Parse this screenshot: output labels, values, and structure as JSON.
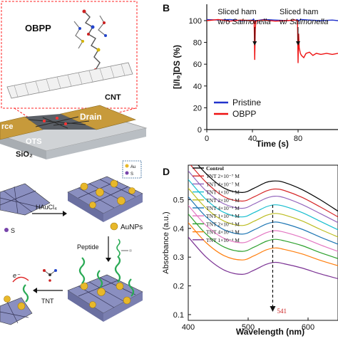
{
  "panels": {
    "b_letter": "B",
    "d_letter": "D"
  },
  "device": {
    "molecule_label": "OBPP",
    "cnt_label": "CNT",
    "source_label": "rce",
    "drain_label": "Drain",
    "ots_label": "OTS",
    "substrate_label": "SiO₂"
  },
  "synthesis": {
    "reagent_label": "HAuCl₄",
    "nanoparticle_label": "AuNPs",
    "peptide_label": "Peptide",
    "analyte_label": "TNT",
    "electron_label": "e⁻",
    "legend_au": "Au",
    "legend_s": "S",
    "left_s": "S"
  },
  "chart_data": [
    {
      "type": "line",
      "panel": "B",
      "xlabel": "Time (s)",
      "ylabel": "[I/I₀]DS (%)",
      "xticks": [
        "0",
        "40",
        "80"
      ],
      "yticks": [
        "0",
        "20",
        "40",
        "60",
        "80",
        "100"
      ],
      "xlim": [
        0,
        115
      ],
      "ylim": [
        0,
        115
      ],
      "legend": [
        "Pristine",
        "OBPP"
      ],
      "legend_position": "bottom-left",
      "annotations": [
        {
          "x": 42,
          "text": "Sliced ham w/o Salmonella"
        },
        {
          "x": 80,
          "text": "Sliced ham w/ Salmonella"
        }
      ],
      "series": [
        {
          "name": "Pristine",
          "color": "#2233cc",
          "x": [
            0,
            10,
            20,
            30,
            40,
            41,
            42,
            43,
            50,
            60,
            70,
            78,
            79,
            80,
            81,
            82,
            90,
            100,
            110,
            115
          ],
          "y": [
            101,
            100.5,
            101,
            100,
            100.5,
            101.5,
            99.5,
            100,
            101,
            100.5,
            100,
            100.5,
            101,
            100.5,
            100,
            101,
            100.5,
            100,
            100.5,
            100
          ]
        },
        {
          "name": "OBPP",
          "color": "#ee1111",
          "x": [
            0,
            10,
            20,
            30,
            40,
            41.5,
            42,
            42.5,
            43,
            44,
            50,
            60,
            70,
            78,
            79.5,
            80,
            80.5,
            81,
            82,
            83,
            85,
            87,
            90,
            93,
            96,
            100,
            105,
            110,
            115
          ],
          "y": [
            100,
            101,
            99.5,
            100.5,
            100,
            100,
            64,
            92,
            99,
            100,
            100.5,
            99.5,
            100,
            100.5,
            100,
            61,
            88,
            75,
            70,
            68,
            66,
            70,
            71,
            68,
            70,
            69,
            70,
            69,
            70
          ]
        }
      ]
    },
    {
      "type": "line",
      "panel": "D",
      "xlabel": "Wavelength (nm)",
      "ylabel": "Absorbance (a.u.)",
      "xticks": [
        "400",
        "500",
        "600"
      ],
      "yticks": [
        "0.1",
        "0.2",
        "0.3",
        "0.4",
        "0.5"
      ],
      "xlim": [
        400,
        650
      ],
      "ylim": [
        0.08,
        0.62
      ],
      "peak_marker": {
        "x": 541,
        "label": "541"
      },
      "legend_position": "top-left",
      "series": [
        {
          "name": "Control",
          "color": "#000000",
          "x": [
            400,
            430,
            460,
            490,
            510,
            530,
            545,
            560,
            590,
            620,
            650
          ],
          "y": [
            0.66,
            0.59,
            0.54,
            0.525,
            0.54,
            0.56,
            0.565,
            0.56,
            0.535,
            0.5,
            0.46
          ]
        },
        {
          "name": "TNT 2×10⁻⁷ M",
          "color": "#d62728",
          "x": [
            400,
            430,
            460,
            490,
            510,
            530,
            545,
            560,
            590,
            620,
            650
          ],
          "y": [
            0.63,
            0.56,
            0.51,
            0.495,
            0.51,
            0.53,
            0.537,
            0.532,
            0.508,
            0.475,
            0.44
          ]
        },
        {
          "name": "TNT 4×10⁻⁷ M",
          "color": "#9467bd",
          "x": [
            400,
            430,
            460,
            490,
            510,
            530,
            545,
            560,
            590,
            620,
            650
          ],
          "y": [
            0.6,
            0.53,
            0.485,
            0.47,
            0.485,
            0.505,
            0.512,
            0.507,
            0.483,
            0.452,
            0.42
          ]
        },
        {
          "name": "TNT 1×10⁻⁶ M",
          "color": "#17becf",
          "x": [
            400,
            430,
            460,
            490,
            510,
            530,
            545,
            560,
            590,
            620,
            650
          ],
          "y": [
            0.57,
            0.5,
            0.455,
            0.44,
            0.455,
            0.475,
            0.482,
            0.477,
            0.455,
            0.425,
            0.395
          ]
        },
        {
          "name": "TNT 2×10⁻⁶ M",
          "color": "#bcbd22",
          "x": [
            400,
            430,
            460,
            490,
            510,
            530,
            545,
            560,
            590,
            620,
            650
          ],
          "y": [
            0.54,
            0.47,
            0.425,
            0.41,
            0.425,
            0.445,
            0.452,
            0.447,
            0.426,
            0.397,
            0.37
          ]
        },
        {
          "name": "TNT 4×10⁻⁶ M",
          "color": "#1f77b4",
          "x": [
            400,
            430,
            460,
            490,
            510,
            530,
            545,
            560,
            590,
            620,
            650
          ],
          "y": [
            0.51,
            0.44,
            0.395,
            0.38,
            0.395,
            0.415,
            0.422,
            0.417,
            0.397,
            0.37,
            0.345
          ]
        },
        {
          "name": "TNT 1×10⁻⁵ M",
          "color": "#e377c2",
          "x": [
            400,
            430,
            460,
            490,
            510,
            530,
            545,
            560,
            590,
            620,
            650
          ],
          "y": [
            0.48,
            0.41,
            0.365,
            0.35,
            0.365,
            0.385,
            0.392,
            0.387,
            0.368,
            0.343,
            0.32
          ]
        },
        {
          "name": "TNT 2×10⁻⁵ M",
          "color": "#2ca02c",
          "x": [
            400,
            430,
            460,
            490,
            510,
            530,
            545,
            560,
            590,
            620,
            650
          ],
          "y": [
            0.45,
            0.38,
            0.335,
            0.32,
            0.335,
            0.355,
            0.362,
            0.357,
            0.34,
            0.316,
            0.295
          ]
        },
        {
          "name": "TNT 4×10⁻⁵ M",
          "color": "#ff7f0e",
          "x": [
            400,
            430,
            460,
            490,
            510,
            530,
            545,
            560,
            590,
            620,
            650
          ],
          "y": [
            0.42,
            0.35,
            0.305,
            0.29,
            0.305,
            0.325,
            0.332,
            0.327,
            0.311,
            0.289,
            0.27
          ]
        },
        {
          "name": "TNT 1×10⁻⁴ M",
          "color": "#7b3294",
          "x": [
            400,
            430,
            460,
            490,
            510,
            530,
            545,
            560,
            590,
            620,
            650
          ],
          "y": [
            0.37,
            0.3,
            0.255,
            0.24,
            0.255,
            0.275,
            0.282,
            0.277,
            0.262,
            0.242,
            0.225
          ]
        }
      ]
    }
  ]
}
